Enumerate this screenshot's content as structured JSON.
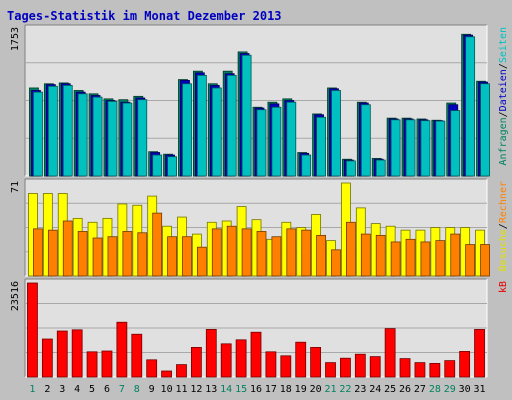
{
  "chart_data": {
    "type": "bar",
    "title": "Tages-Statistik im Monat Dezember 2013",
    "categories": [
      "1",
      "2",
      "3",
      "4",
      "5",
      "6",
      "7",
      "8",
      "9",
      "10",
      "11",
      "12",
      "13",
      "14",
      "15",
      "16",
      "17",
      "18",
      "19",
      "20",
      "21",
      "22",
      "23",
      "24",
      "25",
      "26",
      "27",
      "28",
      "29",
      "30",
      "31"
    ],
    "weekend_days": [
      "1",
      "7",
      "8",
      "14",
      "15",
      "21",
      "22",
      "28",
      "29"
    ],
    "panels": [
      {
        "max_label": "1753",
        "ymax": 1753,
        "legend": [
          "Anfragen",
          "/",
          "Dateien",
          "/",
          "Seiten"
        ],
        "legend_colors": [
          "#008060",
          "#000000",
          "#0000c0",
          "#000000",
          "#00c0c0"
        ],
        "series": [
          {
            "name": "Anfragen",
            "color": "#008060",
            "values": [
              1050,
              1100,
              1110,
              1020,
              980,
              920,
              910,
              950,
              290,
              260,
              1150,
              1250,
              1100,
              1250,
              1480,
              820,
              880,
              920,
              280,
              740,
              1050,
              200,
              880,
              210,
              690,
              690,
              680,
              665,
              870,
              1690,
              1130
            ]
          },
          {
            "name": "Dateien",
            "color": "#0000c0",
            "values": [
              1020,
              1090,
              1100,
              1000,
              960,
              900,
              880,
              930,
              280,
              250,
              1140,
              1230,
              1080,
              1220,
              1460,
              810,
              860,
              900,
              270,
              730,
              1040,
              190,
              870,
              200,
              680,
              680,
              670,
              660,
              850,
              1680,
              1120
            ]
          },
          {
            "name": "Seiten",
            "color": "#00c0c0",
            "values": [
              1000,
              1070,
              1080,
              980,
              940,
              890,
              870,
              910,
              250,
              230,
              1100,
              1200,
              1050,
              1200,
              1440,
              790,
              820,
              880,
              250,
              700,
              1020,
              180,
              850,
              190,
              670,
              670,
              660,
              655,
              780,
              1660,
              1100
            ]
          }
        ]
      },
      {
        "max_label": "71",
        "ymax": 71,
        "legend": [
          "Besuche",
          "/",
          "Rechner"
        ],
        "legend_colors": [
          "#e0e000",
          "#000000",
          "#ff8000"
        ],
        "series": [
          {
            "name": "Besuche",
            "color": "#ffff00",
            "values": [
              63,
              63,
              63,
              44,
              41,
              44,
              55,
              54,
              61,
              38,
              45,
              32,
              41,
              42,
              53,
              43,
              28,
              41,
              37,
              47,
              27,
              71,
              52,
              40,
              38,
              35,
              35,
              37,
              37,
              37,
              35
            ]
          },
          {
            "name": "Rechner",
            "color": "#ff8000",
            "values": [
              36,
              35,
              42,
              34,
              29,
              30,
              34,
              33,
              48,
              30,
              30,
              22,
              36,
              38,
              36,
              34,
              30,
              36,
              35,
              31,
              20,
              41,
              32,
              31,
              26,
              28,
              26,
              27,
              32,
              24,
              24
            ]
          }
        ]
      },
      {
        "max_label": "23516",
        "ymax": 23516,
        "legend": [
          "kB"
        ],
        "legend_colors": [
          "#e00000"
        ],
        "series": [
          {
            "name": "kB",
            "color": "#ff0000",
            "values": [
              23516,
              9500,
              11500,
              11800,
              6300,
              6500,
              13700,
              10700,
              4300,
              1500,
              3100,
              7400,
              11900,
              8300,
              9300,
              11200,
              6300,
              5300,
              8700,
              7400,
              3600,
              4700,
              5700,
              5100,
              12100,
              4600,
              3600,
              3400,
              4100,
              6400,
              11900
            ]
          }
        ]
      }
    ],
    "colors": {
      "frame": "#c0c0c0",
      "plot_bg": "#e0e0e0",
      "title": "#0000c0",
      "weekday_label": "#000000",
      "weekend_label": "#008060",
      "grid": "#c0c0c0"
    }
  }
}
